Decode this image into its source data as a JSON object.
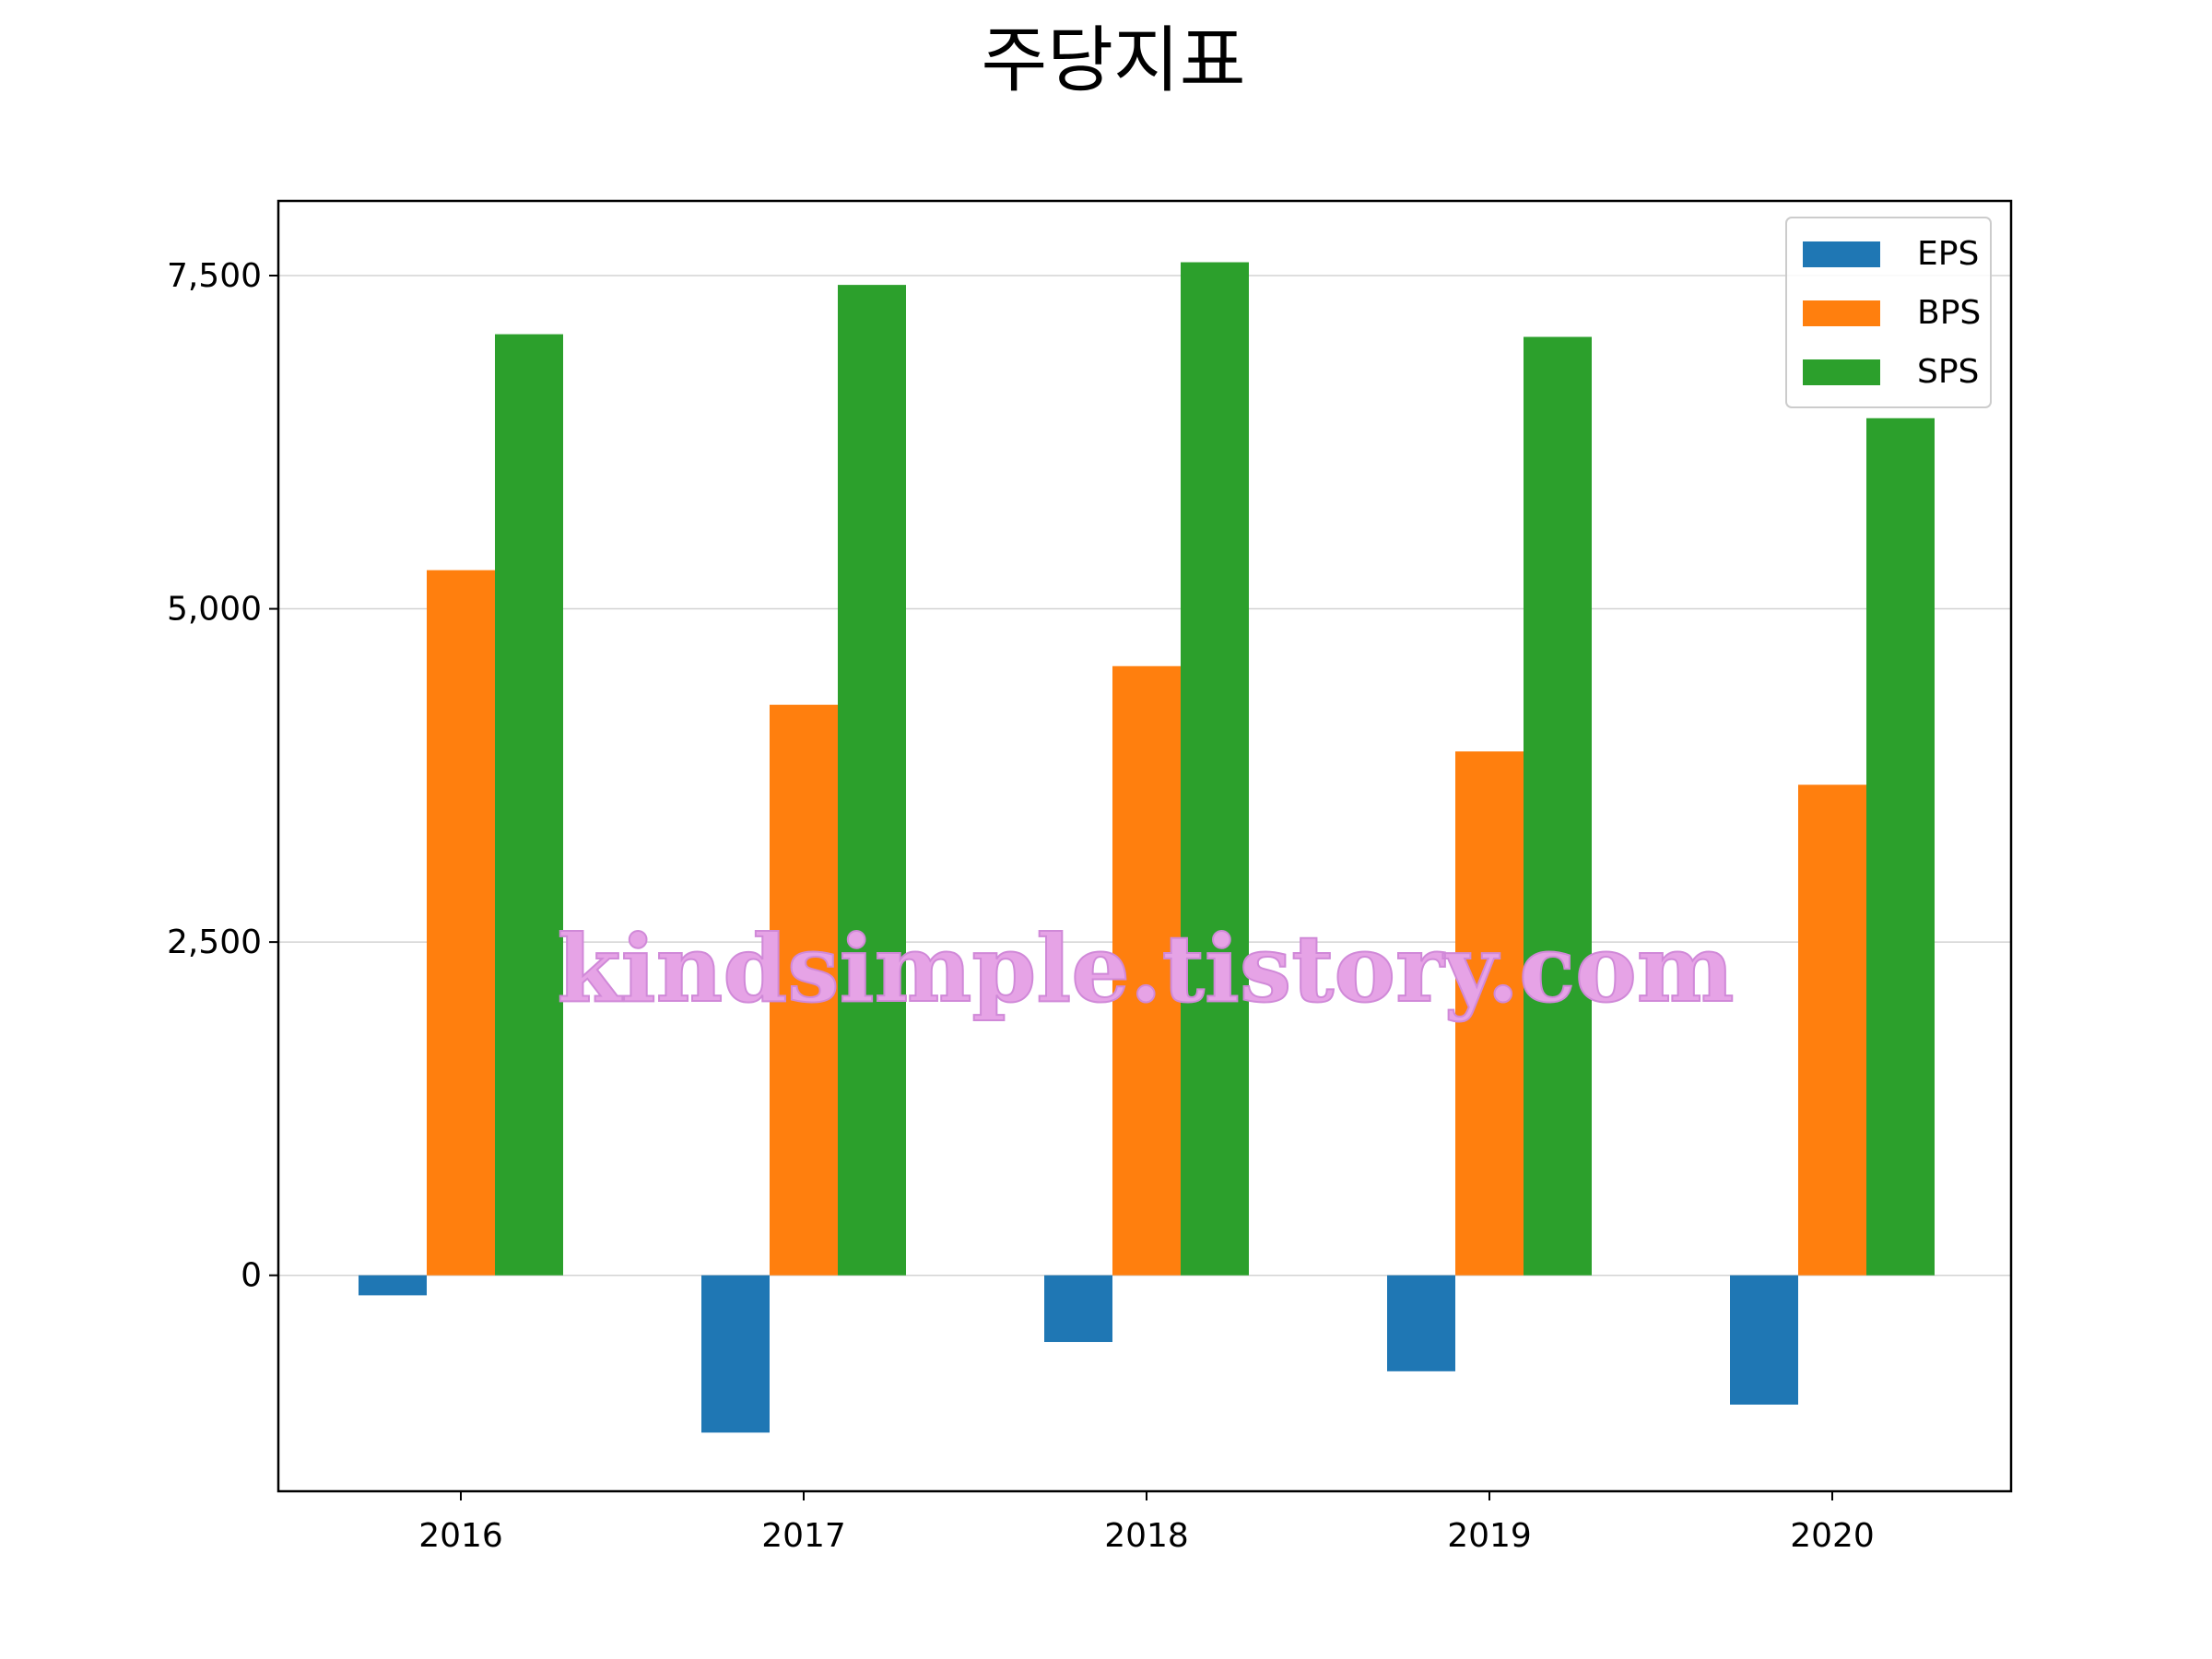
{
  "chart_data": {
    "type": "bar",
    "title": "주당지표",
    "xlabel": "",
    "ylabel": "",
    "categories": [
      "2016",
      "2017",
      "2018",
      "2019",
      "2020"
    ],
    "series": [
      {
        "name": "EPS",
        "color": "#1f77b4",
        "values": [
          -150,
          -1180,
          -500,
          -720,
          -970
        ]
      },
      {
        "name": "BPS",
        "color": "#ff7f0e",
        "values": [
          5290,
          4280,
          4570,
          3930,
          3680
        ]
      },
      {
        "name": "SPS",
        "color": "#2ca02c",
        "values": [
          7060,
          7430,
          7600,
          7040,
          6430
        ]
      }
    ],
    "ylim": [
      -1620,
      8060
    ],
    "yticks": [
      0,
      2500,
      5000,
      7500
    ],
    "ytick_labels": [
      "0",
      "2,500",
      "5,000",
      "7,500"
    ],
    "grid": "horizontal",
    "legend_position": "upper right"
  },
  "watermark": "kindsimple.tistory.com"
}
